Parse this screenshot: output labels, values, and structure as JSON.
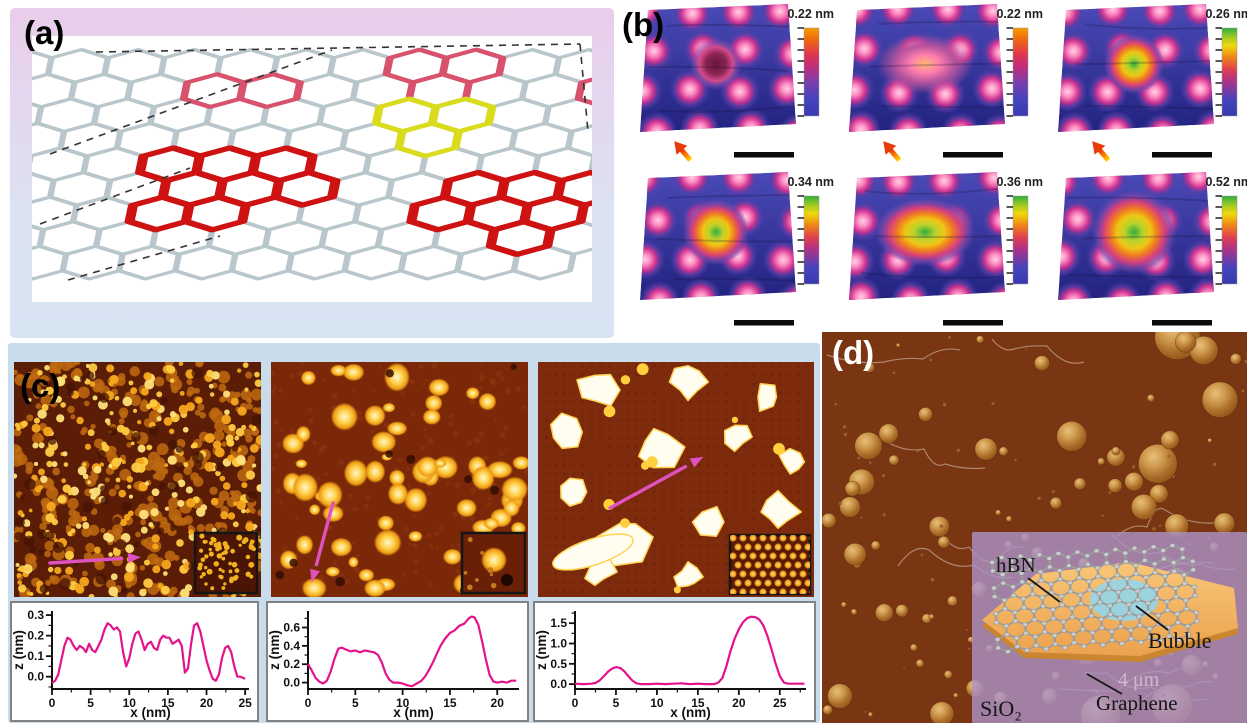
{
  "panels": {
    "a": {
      "label": "(a)"
    },
    "b": {
      "label": "(b)",
      "images": [
        {
          "scale_label": "0.22 nm",
          "colorbar_top": "orange",
          "arrow": true
        },
        {
          "scale_label": "0.22 nm",
          "colorbar_top": "orange",
          "arrow": true
        },
        {
          "scale_label": "0.26 nm",
          "colorbar_top": "green",
          "arrow": true
        },
        {
          "scale_label": "0.34 nm",
          "colorbar_top": "green",
          "arrow": false
        },
        {
          "scale_label": "0.36 nm",
          "colorbar_top": "green",
          "arrow": false
        },
        {
          "scale_label": "0.52 nm",
          "colorbar_top": "green",
          "arrow": false
        }
      ]
    },
    "c": {
      "label": "(c)"
    },
    "d": {
      "label": "(d)",
      "inset": {
        "hbn_label": "hBN",
        "bubble_label": "Bubble",
        "graphene_label": "Graphene",
        "substrate_label": "SiO₂",
        "scale_text": "4 μm"
      }
    }
  },
  "colors": {
    "profile_line": "#E4128B",
    "panel_c_bg": "#C9DCEC",
    "afm_gold": "#F5A81E",
    "afm_brown_dark": "#5C1D06",
    "afm_brown_mid": "#7A2808",
    "bubble_field_brown": "#7A3513",
    "inset_purple": "#AD93C9",
    "hbn_orange": "#F4B766",
    "bubble_cyan": "#97D4E4"
  },
  "chart_data": [
    {
      "type": "line",
      "xlabel": "x (nm)",
      "ylabel": "z (nm)",
      "xlim": [
        0,
        25.5
      ],
      "ylim": [
        -0.06,
        0.32
      ],
      "xticks": [
        0,
        5,
        10,
        15,
        20,
        25
      ],
      "xtick_labels": [
        "0",
        "5",
        "10",
        "15",
        "20",
        "25"
      ],
      "yticks": [
        0.0,
        0.1,
        0.2,
        0.3
      ],
      "ytick_labels": [
        "0.0",
        "0.1",
        "0.2",
        "0.3"
      ],
      "xminor": 2.5,
      "yminor": 0.05,
      "line_color": "#E4128B",
      "x": [
        0,
        0.4,
        0.8,
        1.2,
        1.6,
        2,
        2.4,
        2.8,
        3.2,
        3.6,
        4,
        4.4,
        4.8,
        5.2,
        5.6,
        6,
        6.4,
        6.8,
        7.2,
        7.6,
        8,
        8.4,
        8.8,
        9.2,
        9.6,
        10,
        10.4,
        10.8,
        11.2,
        11.6,
        12,
        12.4,
        12.8,
        13.2,
        13.6,
        14,
        14.4,
        14.8,
        15.2,
        15.6,
        16,
        16.4,
        16.8,
        17.2,
        17.6,
        18,
        18.4,
        18.8,
        19.2,
        19.6,
        20,
        20.4,
        20.8,
        21.2,
        21.6,
        22,
        22.4,
        22.8,
        23.2,
        23.6,
        24,
        24.4,
        25
      ],
      "y": [
        -0.03,
        -0.02,
        0.01,
        0.08,
        0.15,
        0.19,
        0.18,
        0.15,
        0.13,
        0.15,
        0.14,
        0.12,
        0.16,
        0.13,
        0.12,
        0.15,
        0.18,
        0.23,
        0.26,
        0.25,
        0.23,
        0.24,
        0.22,
        0.12,
        0.05,
        0.09,
        0.16,
        0.21,
        0.22,
        0.18,
        0.13,
        0.16,
        0.17,
        0.14,
        0.13,
        0.18,
        0.2,
        0.19,
        0.19,
        0.16,
        0.17,
        0.18,
        0.15,
        0.02,
        0.04,
        0.16,
        0.25,
        0.26,
        0.22,
        0.15,
        0.08,
        0.03,
        -0.01,
        -0.02,
        0.01,
        0.09,
        0.14,
        0.15,
        0.12,
        0.05,
        0,
        0,
        -0.01
      ]
    },
    {
      "type": "line",
      "xlabel": "x (nm)",
      "ylabel": "z (nm)",
      "xlim": [
        0,
        22.3
      ],
      "ylim": [
        -0.07,
        0.78
      ],
      "xticks": [
        0,
        5,
        10,
        15,
        20
      ],
      "xtick_labels": [
        "0",
        "5",
        "10",
        "15",
        "20"
      ],
      "yticks": [
        0.0,
        0.2,
        0.4,
        0.6
      ],
      "ytick_labels": [
        "0.0",
        "0.2",
        "0.4",
        "0.6"
      ],
      "xminor": 2.5,
      "yminor": 0.1,
      "line_color": "#E4128B",
      "x": [
        0,
        0.4,
        0.8,
        1.2,
        1.6,
        2,
        2.4,
        2.8,
        3.2,
        3.6,
        4,
        4.5,
        5,
        5.5,
        6,
        6.5,
        7,
        7.4,
        7.8,
        8.2,
        8.6,
        9,
        9.5,
        10,
        10.5,
        11,
        11.5,
        12,
        12.4,
        12.8,
        13.2,
        13.6,
        14,
        14.5,
        15,
        15.5,
        16,
        16.5,
        17,
        17.3,
        17.6,
        18,
        18.4,
        18.8,
        19.2,
        19.6,
        20,
        20.5,
        21,
        21.5,
        22
      ],
      "y": [
        0.2,
        0.13,
        0.05,
        0.01,
        -0.01,
        0.02,
        0.12,
        0.26,
        0.37,
        0.38,
        0.36,
        0.34,
        0.35,
        0.33,
        0.35,
        0.34,
        0.33,
        0.3,
        0.22,
        0.1,
        0.03,
        0,
        0,
        -0.01,
        -0.03,
        -0.04,
        -0.01,
        0.02,
        0.07,
        0.14,
        0.22,
        0.31,
        0.4,
        0.48,
        0.54,
        0.57,
        0.62,
        0.64,
        0.7,
        0.72,
        0.71,
        0.63,
        0.45,
        0.25,
        0.08,
        0.01,
        0,
        0.01,
        0,
        0.02,
        0.02
      ]
    },
    {
      "type": "line",
      "xlabel": "x (nm)",
      "ylabel": "z (nm)",
      "xlim": [
        0,
        28.2
      ],
      "ylim": [
        -0.12,
        1.8
      ],
      "xticks": [
        0,
        5,
        10,
        15,
        20,
        25
      ],
      "xtick_labels": [
        "0",
        "5",
        "10",
        "15",
        "20",
        "25"
      ],
      "yticks": [
        0.0,
        0.5,
        1.0,
        1.5
      ],
      "ytick_labels": [
        "0.0",
        "0.5",
        "1.0",
        "1.5"
      ],
      "xminor": 2.5,
      "yminor": 0.25,
      "line_color": "#E4128B",
      "x": [
        0,
        1,
        2,
        2.5,
        3,
        3.5,
        4,
        4.5,
        5,
        5.5,
        6,
        6.5,
        7,
        7.5,
        8,
        9,
        10,
        11,
        12,
        13,
        14,
        15,
        16,
        17,
        17.5,
        18,
        18.5,
        19,
        19.5,
        20,
        20.5,
        21,
        21.5,
        22,
        22.5,
        23,
        23.5,
        24,
        24.5,
        25,
        25.5,
        26,
        27,
        28
      ],
      "y": [
        0.01,
        0,
        0.01,
        0.03,
        0.09,
        0.19,
        0.3,
        0.38,
        0.42,
        0.4,
        0.32,
        0.2,
        0.09,
        0.02,
        0,
        0,
        0.01,
        0,
        0.01,
        0.02,
        0,
        0.01,
        0,
        0,
        0.04,
        0.15,
        0.45,
        0.82,
        1.12,
        1.35,
        1.52,
        1.62,
        1.66,
        1.65,
        1.59,
        1.44,
        1.18,
        0.85,
        0.5,
        0.2,
        0.04,
        0.01,
        0.01,
        0.01
      ]
    }
  ]
}
